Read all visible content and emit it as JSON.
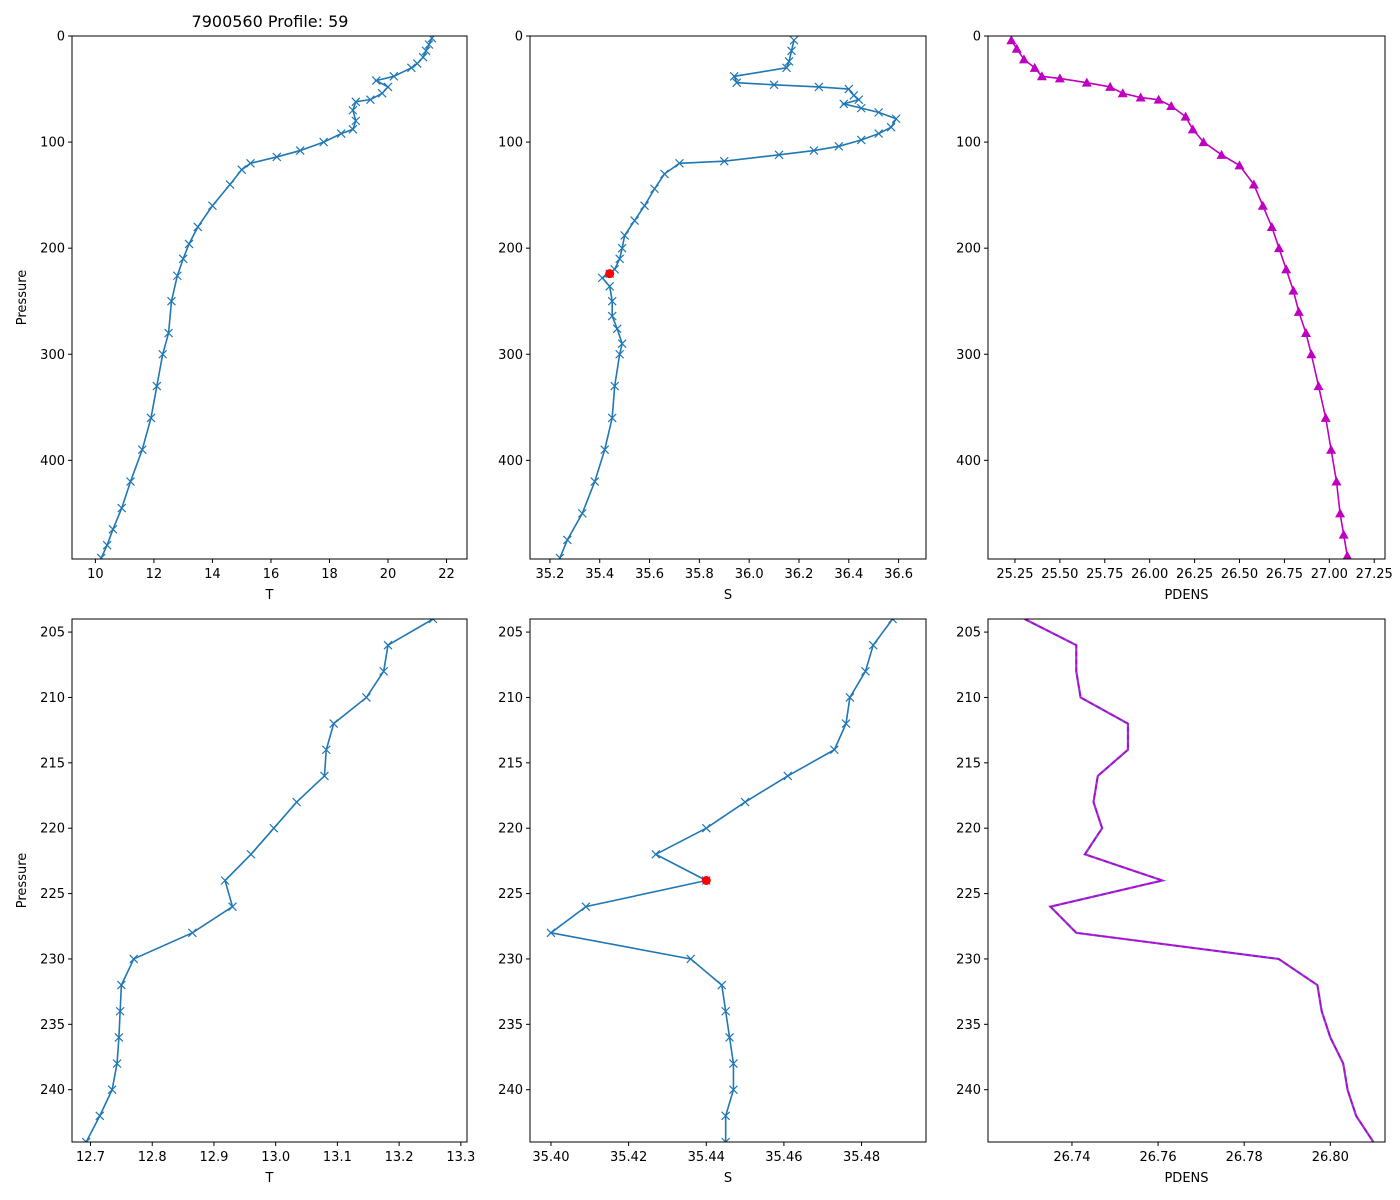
{
  "figure": {
    "title": "7900560 Profile: 59"
  },
  "colors": {
    "line": "#1f77b4",
    "density": "#c000c0",
    "highlight": "#ff0000",
    "overlay": "#8040e0"
  },
  "chart_data": [
    {
      "id": "top-T",
      "type": "line",
      "title": "7900560 Profile: 59",
      "xlabel": "T",
      "ylabel": "Pressure",
      "xlim": [
        9.2,
        22.7
      ],
      "ylim": [
        0,
        493
      ],
      "y_inverted": true,
      "xticks": [
        10,
        12,
        14,
        16,
        18,
        20,
        22
      ],
      "yticks": [
        0,
        100,
        200,
        300,
        400
      ],
      "marker": "x",
      "points": [
        [
          21.5,
          2
        ],
        [
          21.4,
          8
        ],
        [
          21.3,
          14
        ],
        [
          21.2,
          20
        ],
        [
          21.0,
          26
        ],
        [
          20.8,
          30
        ],
        [
          20.2,
          38
        ],
        [
          19.6,
          42
        ],
        [
          20.0,
          48
        ],
        [
          19.8,
          54
        ],
        [
          19.4,
          60
        ],
        [
          18.9,
          62
        ],
        [
          18.8,
          70
        ],
        [
          18.9,
          80
        ],
        [
          18.8,
          88
        ],
        [
          18.4,
          92
        ],
        [
          17.8,
          100
        ],
        [
          17.0,
          108
        ],
        [
          16.2,
          114
        ],
        [
          15.3,
          120
        ],
        [
          15.0,
          126
        ],
        [
          14.6,
          140
        ],
        [
          14.0,
          160
        ],
        [
          13.5,
          180
        ],
        [
          13.2,
          196
        ],
        [
          13.0,
          210
        ],
        [
          12.8,
          226
        ],
        [
          12.6,
          250
        ],
        [
          12.5,
          280
        ],
        [
          12.3,
          300
        ],
        [
          12.1,
          330
        ],
        [
          11.9,
          360
        ],
        [
          11.6,
          390
        ],
        [
          11.2,
          420
        ],
        [
          10.9,
          445
        ],
        [
          10.6,
          465
        ],
        [
          10.4,
          480
        ],
        [
          10.2,
          492
        ]
      ]
    },
    {
      "id": "top-S",
      "type": "line",
      "xlabel": "S",
      "ylabel": "",
      "xlim": [
        35.12,
        36.71
      ],
      "ylim": [
        0,
        493
      ],
      "y_inverted": true,
      "xticks": [
        35.2,
        35.4,
        35.6,
        35.8,
        36.0,
        36.2,
        36.4,
        36.6
      ],
      "xtick_labels": [
        "35.2",
        "35.4",
        "35.6",
        "35.8",
        "36.0",
        "36.2",
        "36.4",
        "36.6"
      ],
      "yticks": [
        0,
        100,
        200,
        300,
        400
      ],
      "marker": "x",
      "highlight_point": [
        35.44,
        224
      ],
      "points": [
        [
          36.18,
          4
        ],
        [
          36.17,
          14
        ],
        [
          36.16,
          24
        ],
        [
          36.15,
          30
        ],
        [
          35.94,
          38
        ],
        [
          35.95,
          44
        ],
        [
          36.1,
          46
        ],
        [
          36.28,
          48
        ],
        [
          36.4,
          50
        ],
        [
          36.42,
          56
        ],
        [
          36.44,
          60
        ],
        [
          36.38,
          64
        ],
        [
          36.45,
          68
        ],
        [
          36.52,
          72
        ],
        [
          36.59,
          78
        ],
        [
          36.57,
          86
        ],
        [
          36.52,
          92
        ],
        [
          36.45,
          98
        ],
        [
          36.36,
          104
        ],
        [
          36.26,
          108
        ],
        [
          36.12,
          112
        ],
        [
          35.9,
          118
        ],
        [
          35.72,
          120
        ],
        [
          35.66,
          130
        ],
        [
          35.62,
          144
        ],
        [
          35.58,
          160
        ],
        [
          35.54,
          174
        ],
        [
          35.5,
          188
        ],
        [
          35.49,
          200
        ],
        [
          35.48,
          210
        ],
        [
          35.46,
          220
        ],
        [
          35.44,
          224
        ],
        [
          35.41,
          228
        ],
        [
          35.44,
          236
        ],
        [
          35.45,
          250
        ],
        [
          35.45,
          264
        ],
        [
          35.47,
          276
        ],
        [
          35.49,
          290
        ],
        [
          35.48,
          300
        ],
        [
          35.46,
          330
        ],
        [
          35.45,
          360
        ],
        [
          35.42,
          390
        ],
        [
          35.38,
          420
        ],
        [
          35.33,
          450
        ],
        [
          35.27,
          475
        ],
        [
          35.24,
          492
        ]
      ]
    },
    {
      "id": "top-PDENS",
      "type": "line",
      "xlabel": "PDENS",
      "ylabel": "",
      "xlim": [
        25.1,
        27.31
      ],
      "ylim": [
        0,
        493
      ],
      "y_inverted": true,
      "xticks": [
        25.25,
        25.5,
        25.75,
        26.0,
        26.25,
        26.5,
        26.75,
        27.0,
        27.25
      ],
      "xtick_labels": [
        "25.25",
        "25.50",
        "25.75",
        "26.00",
        "26.25",
        "26.50",
        "26.75",
        "27.00",
        "27.25"
      ],
      "yticks": [
        0,
        100,
        200,
        300,
        400
      ],
      "marker": "triangle",
      "points": [
        [
          25.23,
          4
        ],
        [
          25.26,
          12
        ],
        [
          25.3,
          22
        ],
        [
          25.36,
          30
        ],
        [
          25.4,
          38
        ],
        [
          25.5,
          40
        ],
        [
          25.65,
          44
        ],
        [
          25.78,
          48
        ],
        [
          25.85,
          54
        ],
        [
          25.95,
          58
        ],
        [
          26.05,
          60
        ],
        [
          26.12,
          66
        ],
        [
          26.2,
          76
        ],
        [
          26.24,
          88
        ],
        [
          26.3,
          100
        ],
        [
          26.4,
          112
        ],
        [
          26.5,
          122
        ],
        [
          26.58,
          140
        ],
        [
          26.63,
          160
        ],
        [
          26.68,
          180
        ],
        [
          26.72,
          200
        ],
        [
          26.76,
          220
        ],
        [
          26.8,
          240
        ],
        [
          26.83,
          260
        ],
        [
          26.87,
          280
        ],
        [
          26.9,
          300
        ],
        [
          26.94,
          330
        ],
        [
          26.98,
          360
        ],
        [
          27.01,
          390
        ],
        [
          27.04,
          420
        ],
        [
          27.06,
          450
        ],
        [
          27.08,
          470
        ],
        [
          27.1,
          490
        ]
      ]
    },
    {
      "id": "bottom-T",
      "type": "line",
      "xlabel": "T",
      "ylabel": "Pressure",
      "xlim": [
        12.67,
        13.31
      ],
      "ylim": [
        204,
        244
      ],
      "y_inverted": true,
      "xticks": [
        12.7,
        12.8,
        12.9,
        13.0,
        13.1,
        13.2,
        13.3
      ],
      "xtick_labels": [
        "12.7",
        "12.8",
        "12.9",
        "13.0",
        "13.1",
        "13.2",
        "13.3"
      ],
      "yticks": [
        205,
        210,
        215,
        220,
        225,
        230,
        235,
        240
      ],
      "marker": "x",
      "points": [
        [
          13.255,
          204
        ],
        [
          13.182,
          206
        ],
        [
          13.175,
          208
        ],
        [
          13.147,
          210
        ],
        [
          13.094,
          212
        ],
        [
          13.082,
          214
        ],
        [
          13.079,
          216
        ],
        [
          13.034,
          218
        ],
        [
          12.997,
          220
        ],
        [
          12.96,
          222
        ],
        [
          12.918,
          224
        ],
        [
          12.93,
          226
        ],
        [
          12.865,
          228
        ],
        [
          12.77,
          230
        ],
        [
          12.75,
          232
        ],
        [
          12.748,
          234
        ],
        [
          12.746,
          236
        ],
        [
          12.743,
          238
        ],
        [
          12.735,
          240
        ],
        [
          12.715,
          242
        ],
        [
          12.693,
          244
        ]
      ]
    },
    {
      "id": "bottom-S",
      "type": "line",
      "xlabel": "S",
      "ylabel": "",
      "xlim": [
        35.3946,
        35.4966
      ],
      "ylim": [
        204,
        244
      ],
      "y_inverted": true,
      "xticks": [
        35.4,
        35.42,
        35.44,
        35.46,
        35.48
      ],
      "xtick_labels": [
        "35.40",
        "35.42",
        "35.44",
        "35.46",
        "35.48"
      ],
      "yticks": [
        205,
        210,
        215,
        220,
        225,
        230,
        235,
        240
      ],
      "marker": "x",
      "highlight_point": [
        35.44,
        224
      ],
      "points": [
        [
          35.488,
          204
        ],
        [
          35.483,
          206
        ],
        [
          35.481,
          208
        ],
        [
          35.477,
          210
        ],
        [
          35.476,
          212
        ],
        [
          35.473,
          214
        ],
        [
          35.461,
          216
        ],
        [
          35.45,
          218
        ],
        [
          35.44,
          220
        ],
        [
          35.427,
          222
        ],
        [
          35.44,
          224
        ],
        [
          35.409,
          226
        ],
        [
          35.4,
          228
        ],
        [
          35.436,
          230
        ],
        [
          35.444,
          232
        ],
        [
          35.445,
          234
        ],
        [
          35.446,
          236
        ],
        [
          35.447,
          238
        ],
        [
          35.447,
          240
        ],
        [
          35.445,
          242
        ],
        [
          35.445,
          244
        ]
      ]
    },
    {
      "id": "bottom-PDENS",
      "type": "line",
      "xlabel": "PDENS",
      "ylabel": "",
      "xlim": [
        26.7205,
        26.8127
      ],
      "ylim": [
        204,
        244
      ],
      "y_inverted": true,
      "xticks": [
        26.74,
        26.76,
        26.78,
        26.8
      ],
      "xtick_labels": [
        "26.74",
        "26.76",
        "26.78",
        "26.80"
      ],
      "yticks": [
        205,
        210,
        215,
        220,
        225,
        230,
        235,
        240
      ],
      "marker": "none",
      "points": [
        [
          26.729,
          204
        ],
        [
          26.741,
          206
        ],
        [
          26.741,
          208
        ],
        [
          26.742,
          210
        ],
        [
          26.753,
          212
        ],
        [
          26.753,
          214
        ],
        [
          26.746,
          216
        ],
        [
          26.745,
          218
        ],
        [
          26.747,
          220
        ],
        [
          26.743,
          222
        ],
        [
          26.761,
          224
        ],
        [
          26.735,
          226
        ],
        [
          26.741,
          228
        ],
        [
          26.788,
          230
        ],
        [
          26.797,
          232
        ],
        [
          26.798,
          234
        ],
        [
          26.8,
          236
        ],
        [
          26.803,
          238
        ],
        [
          26.804,
          240
        ],
        [
          26.806,
          242
        ],
        [
          26.81,
          244
        ]
      ]
    }
  ]
}
